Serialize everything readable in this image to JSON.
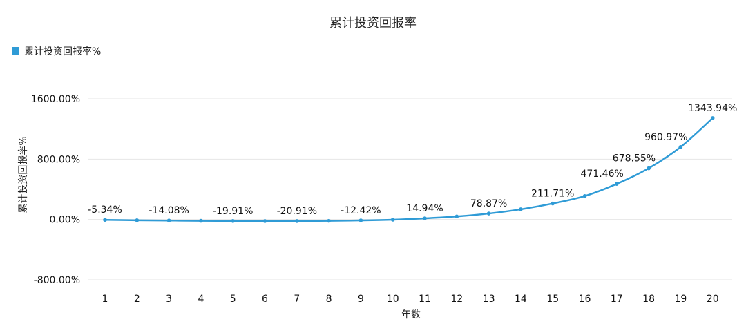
{
  "chart_data": {
    "type": "line",
    "title": "累计投资回报率",
    "xlabel": "年数",
    "ylabel": "累计投资回报率%",
    "legend": {
      "position": "top-left",
      "entries": [
        "累计投资回报率%"
      ]
    },
    "colors": {
      "series": "#2f9bd6",
      "grid": "#e6e6e6"
    },
    "grid": true,
    "ylim": [
      -800,
      1600
    ],
    "yticks": [
      "-800.00%",
      "0.00%",
      "800.00%",
      "1600.00%"
    ],
    "ytick_values": [
      -800,
      0,
      800,
      1600
    ],
    "x": [
      1,
      2,
      3,
      4,
      5,
      6,
      7,
      8,
      9,
      10,
      11,
      12,
      13,
      14,
      15,
      16,
      17,
      18,
      19,
      20
    ],
    "series": [
      {
        "name": "累计投资回报率%",
        "values": [
          -5.34,
          -10.5,
          -14.08,
          -17.5,
          -19.91,
          -21.0,
          -20.91,
          -18.0,
          -12.42,
          -3.0,
          14.94,
          40.0,
          78.87,
          135.0,
          211.71,
          310.0,
          471.46,
          678.55,
          960.97,
          1343.94
        ],
        "labels": [
          "-5.34%",
          "",
          "-14.08%",
          "",
          "-19.91%",
          "",
          "-20.91%",
          "",
          "-12.42%",
          "",
          "14.94%",
          "",
          "78.87%",
          "",
          "211.71%",
          "",
          "471.46%",
          "678.55%",
          "960.97%",
          "1343.94%"
        ]
      }
    ]
  }
}
